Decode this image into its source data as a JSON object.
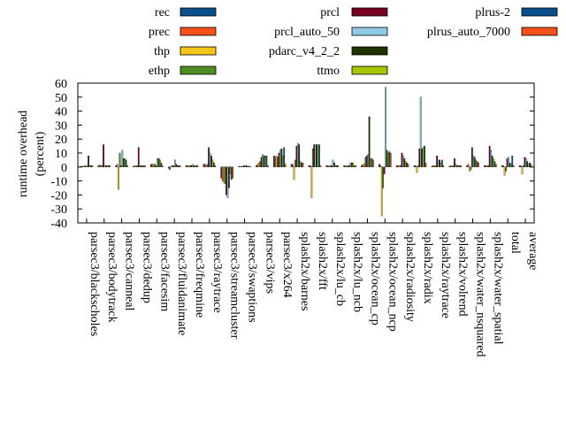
{
  "chart_data": {
    "type": "bar",
    "title": "",
    "xlabel": "",
    "ylabel_lines": [
      "runtime overhead",
      "(percent)"
    ],
    "ylim": [
      -40,
      60
    ],
    "yticks": [
      -40,
      -30,
      -20,
      -10,
      0,
      10,
      20,
      30,
      40,
      50,
      60
    ],
    "grid": false,
    "legend_position": "top, outside plot, three columns",
    "categories": [
      "parsec3/blackscholes",
      "parsec3/bodytrack",
      "parsec3/canneal",
      "parsec3/dedup",
      "parsec3/facesim",
      "parsec3/fluidanimate",
      "parsec3/freqmine",
      "parsec3/raytrace",
      "parsec3/streamcluster",
      "parsec3/swaptions",
      "parsec3/vips",
      "parsec3/x264",
      "splash2x/barnes",
      "splash2x/fft",
      "splash2x/lu_cb",
      "splash2x/lu_ncb",
      "splash2x/ocean_cp",
      "splash2x/ocean_ncp",
      "splash2x/radiosity",
      "splash2x/radix",
      "splash2x/raytrace",
      "splash2x/volrend",
      "splash2x/water_nsquared",
      "splash2x/water_spatial",
      "total",
      "average"
    ],
    "series": [
      {
        "name": "rec",
        "color": "#0b4f8a",
        "values": [
          0.5,
          1,
          1,
          0.5,
          2,
          -1,
          1,
          2,
          -8,
          0.5,
          1,
          8,
          2,
          1,
          1,
          1,
          1,
          2,
          1,
          1,
          0.5,
          0.5,
          1,
          1,
          1,
          1
        ]
      },
      {
        "name": "prec",
        "color": "#f4511e",
        "values": [
          0.5,
          1.5,
          2,
          1,
          2,
          -2,
          1,
          2,
          -10,
          0.5,
          2,
          7,
          2,
          1,
          1,
          1,
          2,
          1,
          1,
          1,
          1,
          1,
          2,
          1,
          1,
          1
        ]
      },
      {
        "name": "thp",
        "color": "#f5c518",
        "values": [
          0.5,
          1,
          -16,
          0.5,
          2,
          0.5,
          1,
          1,
          -11,
          0.5,
          3,
          8,
          -9,
          -22,
          0.5,
          0.5,
          2,
          -35,
          1,
          -4,
          1,
          0.5,
          -3,
          1,
          -6,
          -5
        ]
      },
      {
        "name": "ethp",
        "color": "#4e8c24",
        "values": [
          1,
          1,
          10,
          1,
          2,
          1,
          1,
          2,
          -12,
          0.5,
          4,
          7,
          5,
          13,
          1,
          1,
          7,
          -15,
          1,
          1,
          1,
          1,
          -2,
          1,
          -3,
          1
        ]
      },
      {
        "name": "prcl",
        "color": "#7a0022",
        "values": [
          0.5,
          16,
          1,
          14,
          1,
          1,
          1,
          14,
          -20,
          1,
          7,
          10,
          15,
          16,
          1,
          1,
          8,
          -5,
          10,
          13,
          8,
          6,
          14,
          15,
          6,
          7
        ]
      },
      {
        "name": "prcl_auto_50",
        "color": "#8ecae6",
        "values": [
          1,
          1,
          12,
          1,
          6,
          5,
          2,
          10,
          -22,
          1,
          9,
          12,
          17,
          16,
          5,
          3,
          9,
          57,
          8,
          50,
          5,
          2,
          8,
          12,
          7,
          6
        ]
      },
      {
        "name": "pdarc_v4_2_2",
        "color": "#1f3300",
        "values": [
          8,
          1,
          6,
          1,
          6,
          2,
          1,
          8,
          -15,
          1,
          8,
          13,
          16,
          16,
          3,
          3,
          36,
          12,
          6,
          13,
          5,
          1,
          7,
          8,
          3,
          4
        ]
      },
      {
        "name": "ttmo",
        "color": "#a8c300",
        "values": [
          1,
          1,
          6,
          1,
          5,
          1,
          1,
          5,
          -5,
          0.5,
          8,
          8,
          4,
          16,
          1,
          3,
          6,
          10,
          4,
          14,
          3,
          1,
          5,
          6,
          2,
          2
        ]
      },
      {
        "name": "plrus-2",
        "color": "#0b4f8a",
        "values": [
          1,
          1,
          5,
          1,
          3,
          1,
          1,
          3,
          -9,
          0.5,
          8,
          14,
          3,
          16,
          1,
          1,
          6,
          11,
          3,
          15,
          5,
          1,
          4,
          4,
          8,
          3
        ]
      },
      {
        "name": "plrus_auto_7000",
        "color": "#f4511e",
        "values": [
          1,
          1,
          1,
          1,
          1,
          1,
          1,
          1,
          -8,
          0.5,
          1,
          2,
          3,
          1,
          1,
          1,
          5,
          10,
          2,
          3,
          1,
          1,
          3,
          2,
          1,
          2
        ]
      }
    ]
  }
}
